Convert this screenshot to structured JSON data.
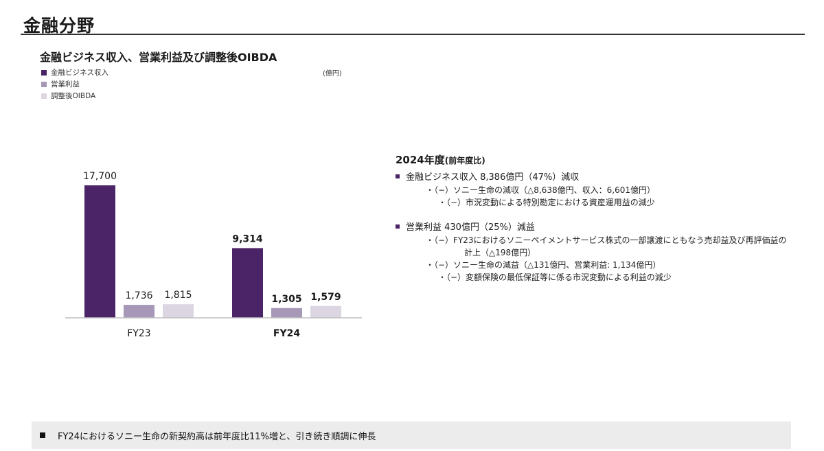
{
  "header": {
    "title": "金融分野"
  },
  "chart_data": {
    "type": "bar",
    "title": "金融ビジネス収入、営業利益及び調整後OIBDA",
    "unit": "(億円)",
    "categories": [
      "FY23",
      "FY24"
    ],
    "series": [
      {
        "name": "金融ビジネス収入",
        "values": [
          17700,
          9314
        ],
        "labels": [
          "17,700",
          "9,314"
        ],
        "color": "#4a2466"
      },
      {
        "name": "営業利益",
        "values": [
          1736,
          1305
        ],
        "labels": [
          "1,736",
          "1,305"
        ],
        "color": "#a898b8"
      },
      {
        "name": "調整後OIBDA",
        "values": [
          1815,
          1579
        ],
        "labels": [
          "1,815",
          "1,579"
        ],
        "color": "#dcd5e2"
      }
    ],
    "ylim": [
      0,
      17700
    ],
    "grid": false,
    "legend": "top-left",
    "emphasized_category": "FY24"
  },
  "summary": {
    "heading": "2024年度",
    "heading_note": "(前年度比)",
    "items": [
      {
        "text": "金融ビジネス収入 8,386億円（47%）減収",
        "subs": [
          {
            "level": 1,
            "lines": [
              "・（−）ソニー生命の減収（△8,638億円、収入：6,601億円）"
            ]
          },
          {
            "level": 2,
            "lines": [
              "・（−）市況変動による特別勘定における資産運用益の減少"
            ]
          }
        ]
      },
      {
        "text": "営業利益 430億円（25%）減益",
        "subs": [
          {
            "level": 1,
            "lines": [
              "・（−）FY23におけるソニーペイメントサービス株式の一部譲渡にともなう売却益及び再評価益の",
              "計上（△198億円）"
            ]
          },
          {
            "level": 1,
            "lines": [
              "・（−）ソニー生命の減益（△131億円、営業利益: 1,134億円）"
            ]
          },
          {
            "level": 2,
            "lines": [
              "・（−）変額保険の最低保証等に係る市況変動による利益の減少"
            ]
          }
        ]
      }
    ]
  },
  "footer": {
    "text": "FY24におけるソニー生命の新契約高は前年度比11%増と、引き続き順調に伸長"
  }
}
